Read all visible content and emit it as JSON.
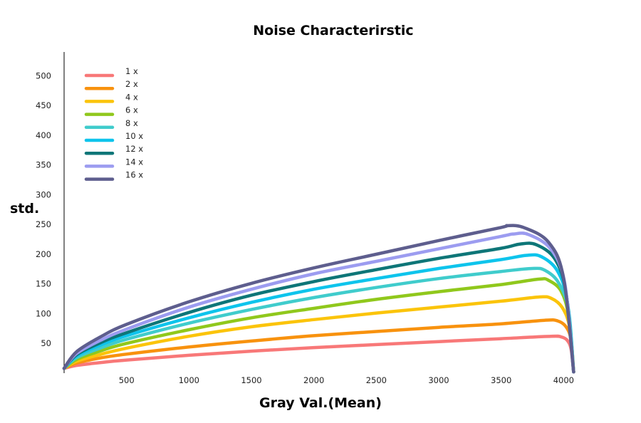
{
  "chart_data": {
    "type": "line",
    "title": "Noise Characterirstic",
    "xlabel": "Gray Val.(Mean)",
    "ylabel": "std.",
    "xlim": [
      0,
      4095
    ],
    "ylim": [
      0,
      540
    ],
    "xticks": [
      500,
      1000,
      1500,
      2000,
      2500,
      3000,
      3500,
      4000
    ],
    "yticks": [
      50,
      100,
      150,
      200,
      250,
      300,
      350,
      400,
      450,
      500
    ],
    "legend_position": "top-left",
    "grid": false,
    "series": [
      {
        "name": "1 x",
        "color": "#F87878",
        "x": [
          0,
          100,
          300,
          500,
          1000,
          1500,
          2000,
          2500,
          3000,
          3500,
          3900,
          3980,
          4030,
          4060,
          4080
        ],
        "y": [
          8,
          13,
          18,
          22,
          30,
          37,
          43,
          48,
          53,
          58,
          62,
          61,
          55,
          40,
          2
        ]
      },
      {
        "name": "2 x",
        "color": "#F8920E",
        "x": [
          0,
          100,
          300,
          500,
          1000,
          1500,
          2000,
          2500,
          3000,
          3500,
          3850,
          3950,
          4020,
          4060,
          4080
        ],
        "y": [
          8,
          17,
          26,
          32,
          44,
          54,
          63,
          70,
          77,
          83,
          89,
          88,
          78,
          55,
          2
        ]
      },
      {
        "name": "4 x",
        "color": "#FBC40B",
        "x": [
          0,
          100,
          300,
          500,
          1000,
          1500,
          2000,
          2500,
          3000,
          3500,
          3800,
          3900,
          3990,
          4050,
          4080
        ],
        "y": [
          8,
          20,
          32,
          42,
          62,
          78,
          90,
          101,
          111,
          121,
          128,
          126,
          110,
          75,
          2
        ]
      },
      {
        "name": "6 x",
        "color": "#90C81C",
        "x": [
          0,
          100,
          300,
          500,
          1000,
          1500,
          2000,
          2500,
          3000,
          3500,
          3800,
          3880,
          3980,
          4040,
          4080
        ],
        "y": [
          8,
          23,
          38,
          50,
          73,
          93,
          109,
          124,
          137,
          149,
          158,
          156,
          138,
          95,
          2
        ]
      },
      {
        "name": "8 x",
        "color": "#40CCCC",
        "x": [
          0,
          100,
          300,
          500,
          1000,
          1500,
          2000,
          2500,
          3000,
          3500,
          3750,
          3850,
          3960,
          4040,
          4080
        ],
        "y": [
          8,
          26,
          43,
          57,
          84,
          107,
          127,
          144,
          159,
          171,
          176,
          173,
          152,
          105,
          2
        ]
      },
      {
        "name": "10 x",
        "color": "#0EC4EC",
        "x": [
          0,
          100,
          300,
          500,
          1000,
          1500,
          2000,
          2500,
          3000,
          3500,
          3700,
          3820,
          3950,
          4030,
          4080
        ],
        "y": [
          8,
          29,
          48,
          63,
          93,
          119,
          141,
          159,
          176,
          191,
          198,
          196,
          172,
          120,
          2
        ]
      },
      {
        "name": "12 x",
        "color": "#0E7678",
        "x": [
          0,
          100,
          300,
          500,
          1000,
          1500,
          2000,
          2500,
          3000,
          3500,
          3650,
          3780,
          3930,
          4020,
          4080
        ],
        "y": [
          8,
          31,
          52,
          68,
          102,
          131,
          154,
          174,
          193,
          210,
          217,
          216,
          192,
          135,
          2
        ]
      },
      {
        "name": "14 x",
        "color": "#9C9CF0",
        "x": [
          0,
          100,
          300,
          500,
          1000,
          1500,
          2000,
          2500,
          3000,
          3500,
          3600,
          3720,
          3900,
          4010,
          4080
        ],
        "y": [
          8,
          33,
          56,
          74,
          111,
          141,
          167,
          188,
          209,
          230,
          234,
          233,
          208,
          150,
          2
        ]
      },
      {
        "name": "16 x",
        "color": "#5E5E8E",
        "x": [
          0,
          100,
          300,
          500,
          1000,
          1500,
          2000,
          2500,
          3000,
          3500,
          3550,
          3680,
          3880,
          4000,
          4080
        ],
        "y": [
          8,
          36,
          62,
          82,
          120,
          151,
          177,
          200,
          223,
          245,
          248,
          245,
          220,
          160,
          2
        ]
      }
    ]
  }
}
